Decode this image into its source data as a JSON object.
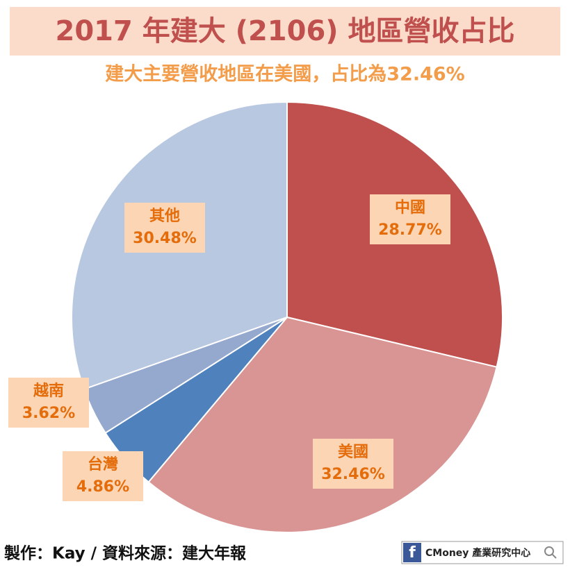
{
  "chart_data": {
    "type": "pie",
    "title": "2017 年建大 (2106) 地區營收占比",
    "subtitle": "建大主要營收地區在美國，占比為32.46%",
    "categories": [
      "中國",
      "美國",
      "台灣",
      "越南",
      "其他"
    ],
    "values": [
      28.77,
      32.46,
      4.86,
      3.62,
      30.48
    ],
    "value_labels": [
      "28.77%",
      "32.46%",
      "4.86%",
      "3.62%",
      "30.48%"
    ],
    "colors": [
      "#c0504d",
      "#d99594",
      "#4f81bd",
      "#95a9cf",
      "#b9c8e1"
    ]
  },
  "footer": {
    "credit": "製作：Kay / 資料來源：建大年報",
    "logo_icon": "f",
    "logo_text": "CMoney 產業研究中心"
  }
}
